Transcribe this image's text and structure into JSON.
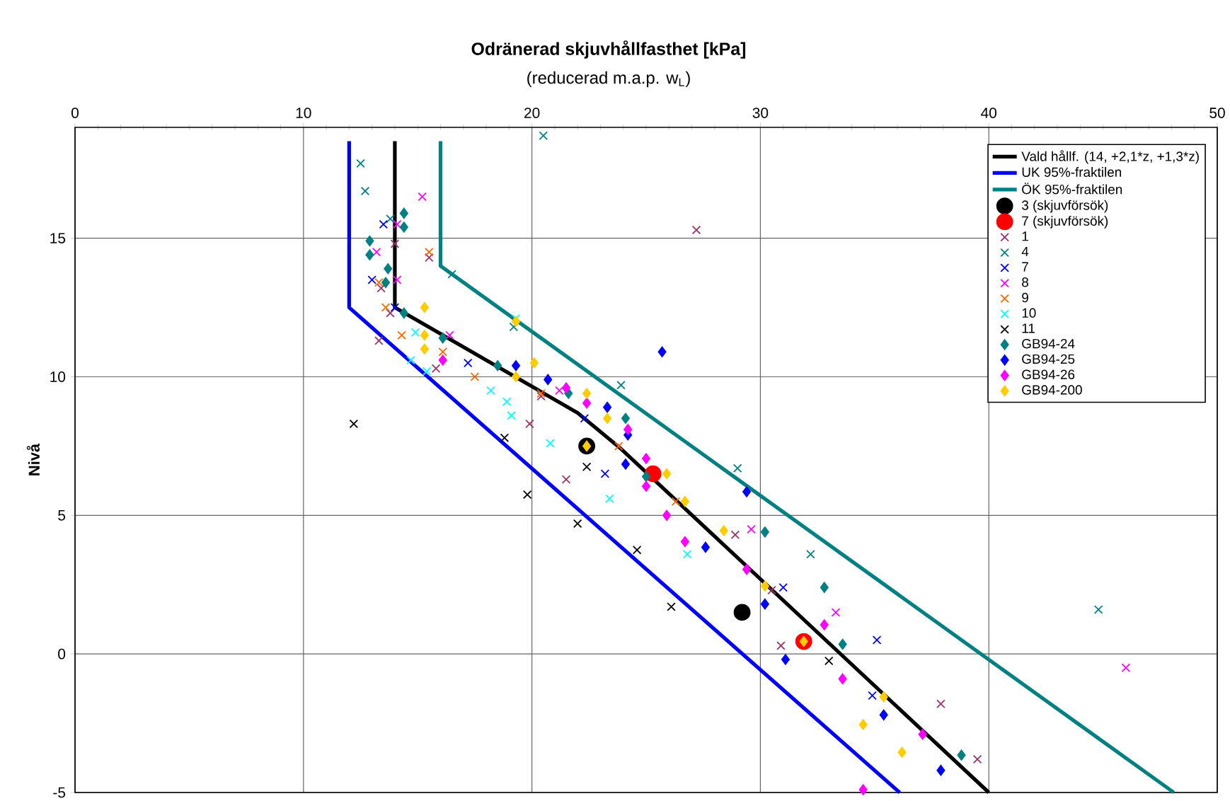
{
  "chart_data": {
    "type": "scatter",
    "title": "Odränerad skjuvhållfasthet [kPa]",
    "subtitle": "(reducerad m.a.p. w$_{L}$)",
    "ylabel": "Nivå",
    "xlim": [
      0,
      50
    ],
    "ylim": [
      -5,
      19
    ],
    "xticks": [
      0,
      10,
      20,
      30,
      40,
      50
    ],
    "yticks": [
      -5,
      0,
      5,
      10,
      15
    ],
    "grid": true,
    "legend": "top right",
    "series": [
      {
        "name": "Vald hållf. (14, +2,1*z, +1,3*z)",
        "type": "line",
        "marker": "none",
        "color": "#000000",
        "x": [
          14,
          14,
          22,
          23.9,
          40
        ],
        "values": [
          18.5,
          12.5,
          8.7,
          7.4,
          -5
        ]
      },
      {
        "name": "UK 95%-fraktilen",
        "type": "line",
        "marker": "none",
        "color": "#0000ff",
        "x": [
          12,
          12,
          36.1
        ],
        "values": [
          18.5,
          12.5,
          -5
        ]
      },
      {
        "name": "ÖK 95%-fraktilen",
        "type": "line",
        "marker": "none",
        "color": "#008080",
        "x": [
          16,
          16,
          48.1
        ],
        "values": [
          18.5,
          14,
          -5
        ]
      },
      {
        "name": "3 (skjuvförsök)",
        "marker": "circle",
        "color": "#000000",
        "x": [
          22.4,
          29.2
        ],
        "values": [
          7.5,
          1.5
        ]
      },
      {
        "name": "7 (skjuvförsök)",
        "marker": "circle",
        "color": "#ff0000",
        "x": [
          25.3,
          31.9
        ],
        "values": [
          6.5,
          0.45
        ]
      },
      {
        "name": "1",
        "marker": "cross",
        "color": "#993366",
        "x": [
          27.2,
          14.0,
          15.5,
          13.4,
          13.8,
          13.3,
          15.8,
          20.4,
          19.9,
          21.5,
          28.9,
          30.9,
          37.9,
          39.5,
          30.5
        ],
        "values": [
          15.3,
          14.8,
          14.3,
          13.2,
          12.3,
          11.3,
          10.3,
          9.3,
          8.3,
          6.3,
          4.3,
          0.3,
          -1.8,
          -3.8,
          2.3
        ]
      },
      {
        "name": "4",
        "marker": "cross",
        "color": "#008080",
        "x": [
          20.5,
          12.5,
          12.7,
          13.8,
          16.5,
          19.2,
          23.9,
          29.0,
          32.2,
          44.8
        ],
        "values": [
          18.7,
          17.7,
          16.7,
          15.7,
          13.7,
          11.8,
          9.7,
          6.7,
          3.6,
          1.6
        ]
      },
      {
        "name": "7",
        "marker": "cross",
        "color": "#0000ff",
        "x": [
          13.5,
          13.0,
          14.0,
          17.2,
          22.3,
          23.2,
          31.0,
          35.1,
          34.9
        ],
        "values": [
          15.5,
          13.5,
          12.5,
          10.5,
          8.5,
          6.5,
          2.4,
          0.5,
          -1.5
        ]
      },
      {
        "name": "8",
        "marker": "cross",
        "color": "#ff00ff",
        "x": [
          15.2,
          14.1,
          13.2,
          14.1,
          16.4,
          21.2,
          29.6,
          33.3,
          46.0
        ],
        "values": [
          16.5,
          15.5,
          14.5,
          13.5,
          11.5,
          9.5,
          4.5,
          1.5,
          -0.5
        ]
      },
      {
        "name": "9",
        "marker": "cross",
        "color": "#ff6600",
        "x": [
          15.5,
          13.3,
          13.6,
          14.3,
          16.1,
          17.5,
          20.4,
          23.8,
          26.3
        ],
        "values": [
          14.5,
          13.4,
          12.5,
          11.5,
          10.9,
          10.0,
          9.4,
          7.5,
          5.5
        ]
      },
      {
        "name": "10",
        "marker": "cross",
        "color": "#00ffff",
        "x": [
          19.3,
          14.9,
          14.7,
          15.4,
          18.2,
          18.9,
          19.1,
          20.8,
          23.4,
          26.8
        ],
        "values": [
          12.1,
          11.6,
          10.6,
          10.2,
          9.5,
          9.1,
          8.6,
          7.6,
          5.6,
          3.6
        ]
      },
      {
        "name": "11",
        "marker": "cross",
        "color": "#000000",
        "x": [
          12.2,
          18.8,
          19.8,
          22.0,
          22.4,
          24.6,
          26.1,
          33.0
        ],
        "values": [
          8.3,
          7.8,
          5.75,
          4.7,
          6.75,
          3.75,
          1.7,
          -0.25
        ]
      },
      {
        "name": "GB94-24",
        "marker": "diamond",
        "color": "#008080",
        "x": [
          14.4,
          14.4,
          12.9,
          12.9,
          13.7,
          13.6,
          14.4,
          16.1,
          18.5,
          21.6,
          24.1,
          25.0,
          30.2,
          32.8,
          33.6,
          38.8
        ],
        "values": [
          15.9,
          15.4,
          14.9,
          14.4,
          13.9,
          13.4,
          12.3,
          11.4,
          10.4,
          9.4,
          8.5,
          6.4,
          4.4,
          2.4,
          0.35,
          -3.65
        ]
      },
      {
        "name": "GB94-25",
        "marker": "diamond",
        "color": "#0000ff",
        "x": [
          25.7,
          19.3,
          20.7,
          23.3,
          24.2,
          24.1,
          29.4,
          27.6,
          30.2,
          31.1,
          35.4,
          37.9
        ],
        "values": [
          10.9,
          10.4,
          9.9,
          8.9,
          7.9,
          6.85,
          5.85,
          3.85,
          1.8,
          -0.2,
          -2.2,
          -4.2
        ]
      },
      {
        "name": "GB94-26",
        "marker": "diamond",
        "color": "#ff00ff",
        "x": [
          16.1,
          21.5,
          22.4,
          24.2,
          25.0,
          25.0,
          25.9,
          26.7,
          29.4,
          32.8,
          33.6,
          37.1,
          34.5
        ],
        "values": [
          10.6,
          9.6,
          9.05,
          8.1,
          7.05,
          6.05,
          5.0,
          4.05,
          3.05,
          1.05,
          -0.9,
          -2.9,
          -4.9
        ]
      },
      {
        "name": "GB94-200",
        "marker": "diamond",
        "color": "#ffcc00",
        "x": [
          15.3,
          15.3,
          15.3,
          20.1,
          19.3,
          19.3,
          22.4,
          23.3,
          22.4,
          25.9,
          26.7,
          28.4,
          30.2,
          31.9,
          35.4,
          34.5,
          36.2
        ],
        "values": [
          12.5,
          11.5,
          11.0,
          10.5,
          10.0,
          12.0,
          9.4,
          8.5,
          7.5,
          6.5,
          5.5,
          4.45,
          2.45,
          0.45,
          -1.55,
          -2.55,
          -3.55
        ]
      }
    ]
  }
}
